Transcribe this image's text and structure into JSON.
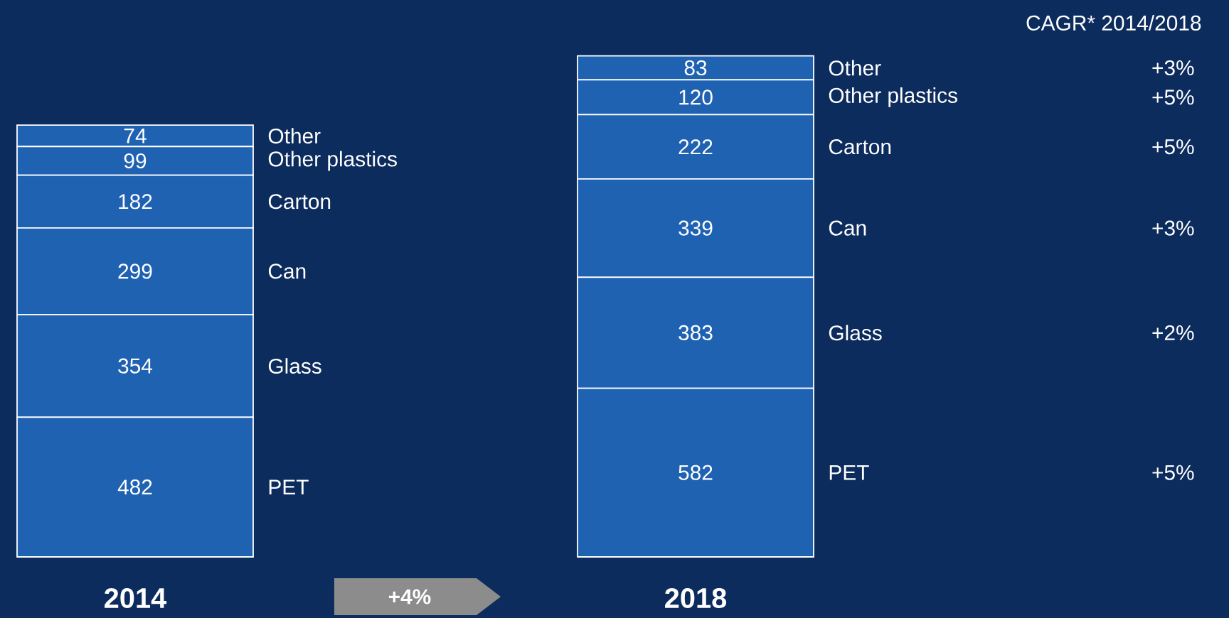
{
  "chart_data": {
    "type": "bar",
    "stacked": true,
    "data_labels": true,
    "categories": [
      "2014",
      "2018"
    ],
    "series": [
      {
        "name": "PET",
        "color": "#1f62b2",
        "values": [
          482,
          582
        ]
      },
      {
        "name": "Glass",
        "color": "#1f62b2",
        "values": [
          354,
          383
        ]
      },
      {
        "name": "Can",
        "color": "#1f62b2",
        "values": [
          299,
          339
        ]
      },
      {
        "name": "Carton",
        "color": "#1f62b2",
        "values": [
          182,
          222
        ]
      },
      {
        "name": "Other plastics",
        "color": "#1f62b2",
        "values": [
          99,
          120
        ]
      },
      {
        "name": "Other",
        "color": "#1f62b2",
        "values": [
          74,
          83
        ]
      }
    ],
    "annotations": [
      "CAGR* 2014/2018",
      "+5%",
      "+2%",
      "+3%",
      "+5%",
      "+5%",
      "+3%",
      "+4%"
    ]
  }
}
